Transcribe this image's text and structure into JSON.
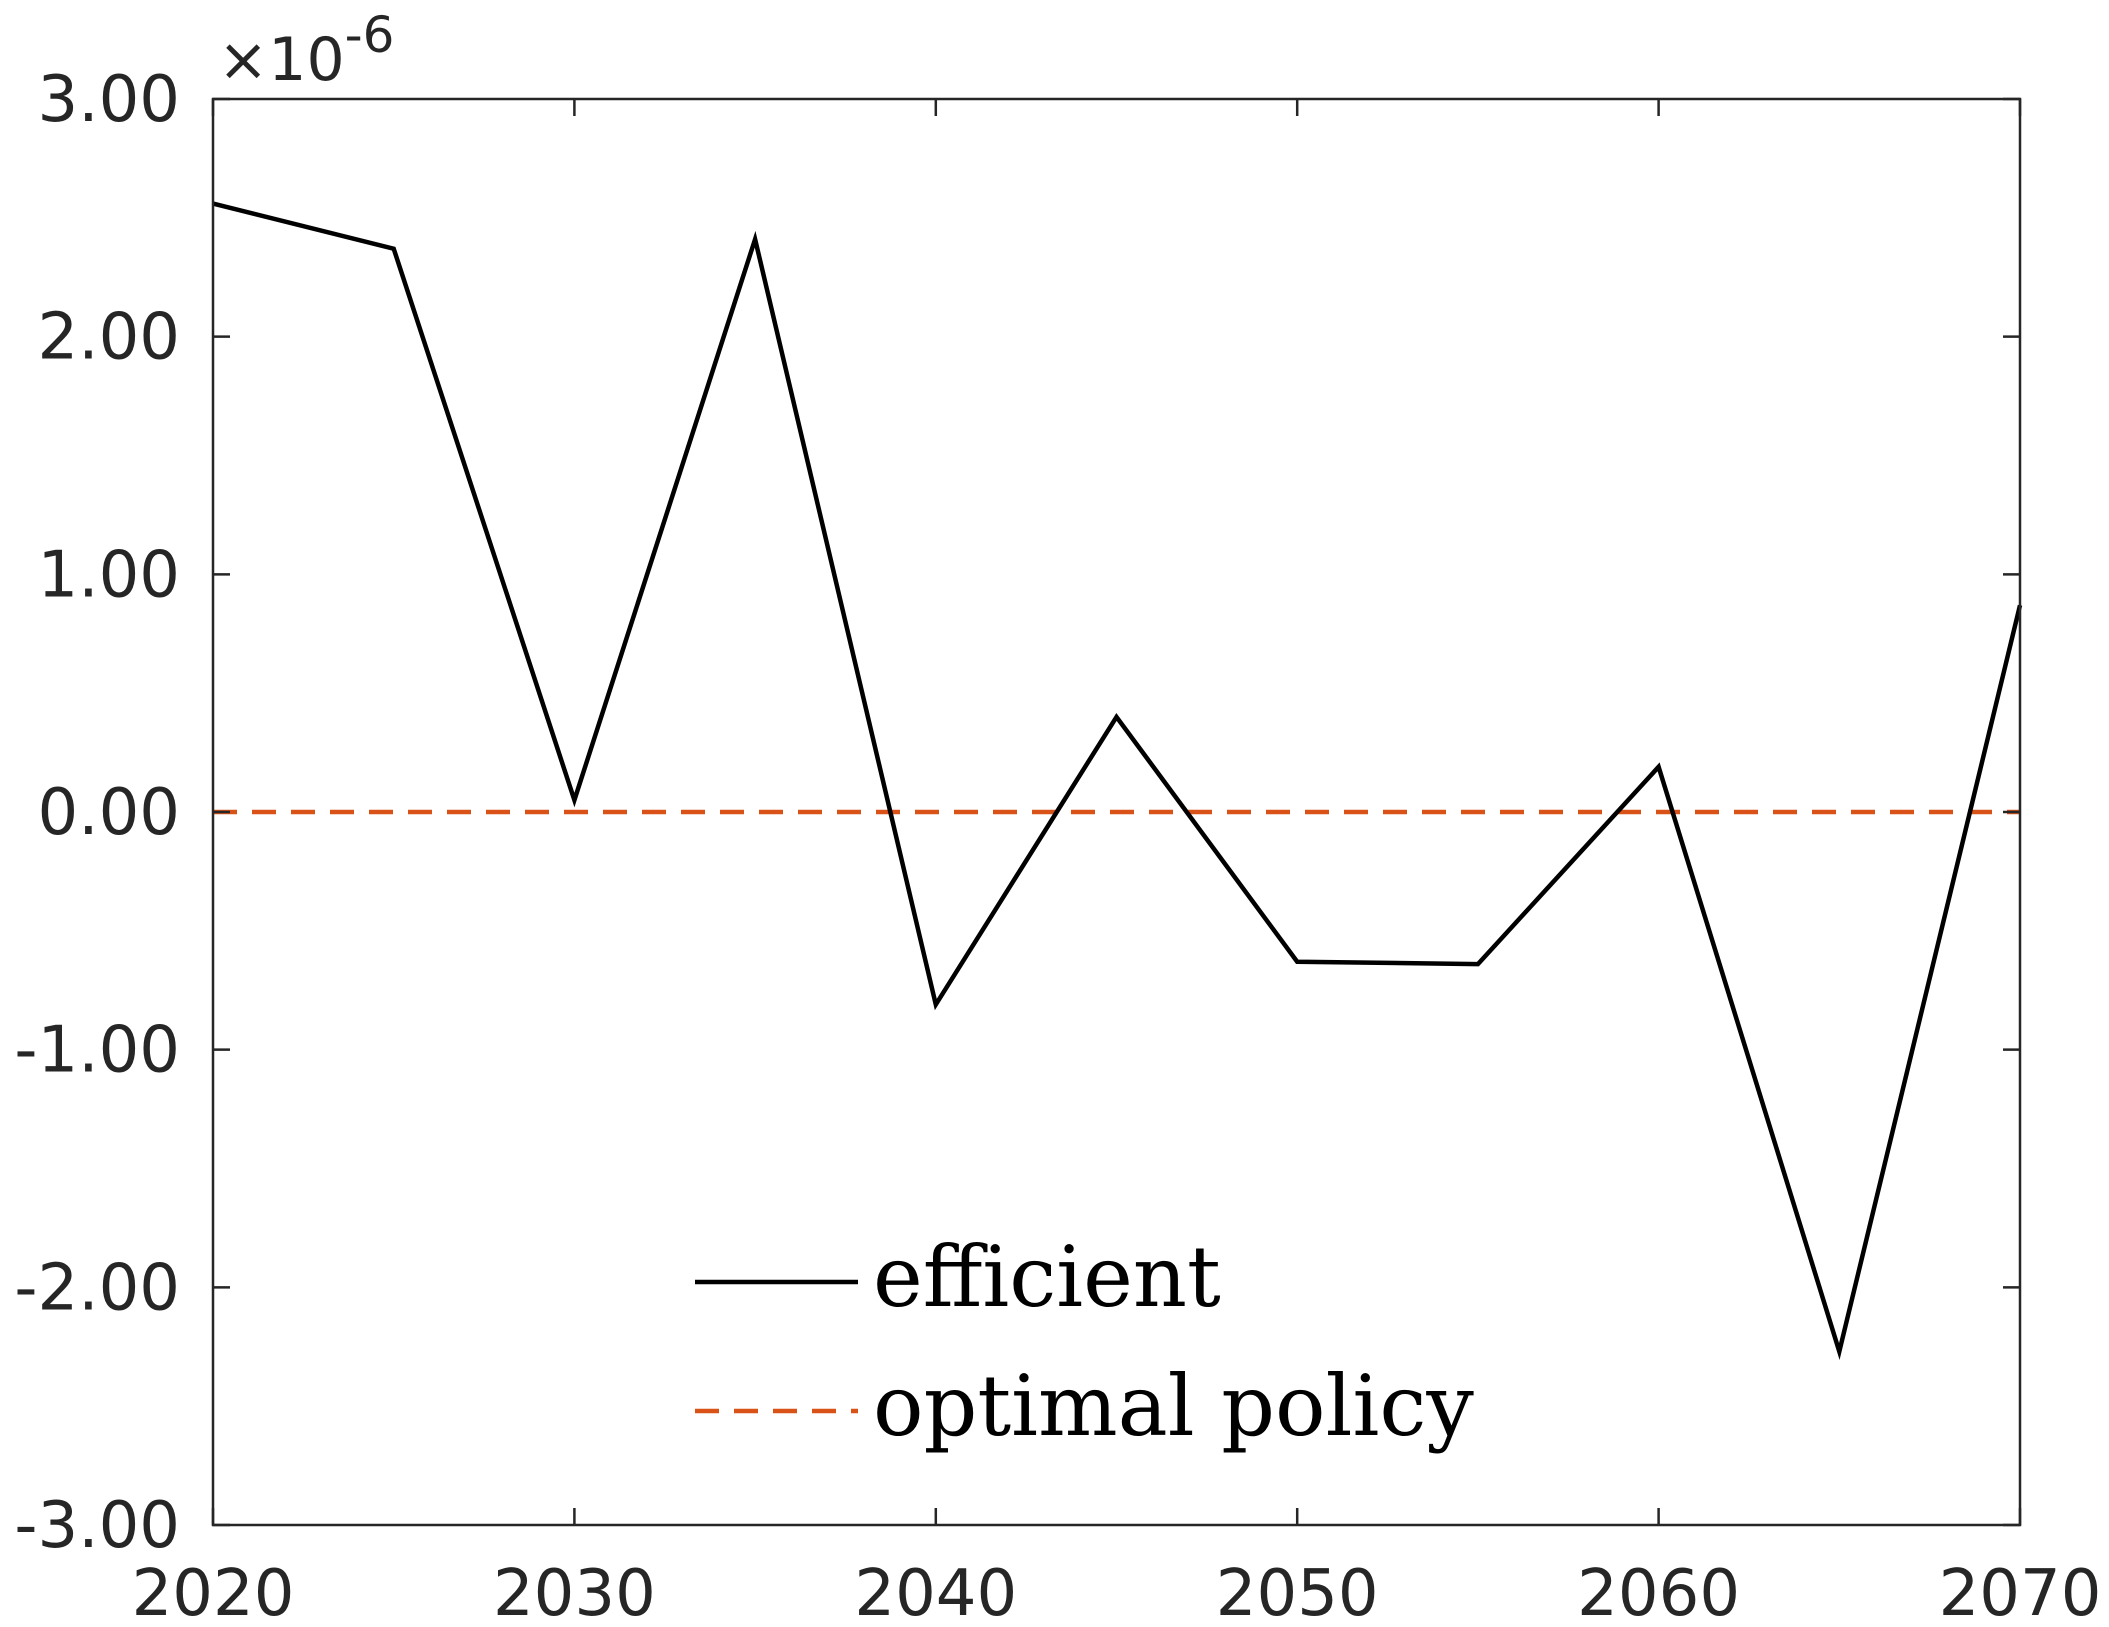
{
  "chart_data": {
    "type": "line",
    "title": "",
    "xlabel": "",
    "ylabel": "",
    "exponent_label": {
      "prefix": "×10",
      "power": "-6"
    },
    "xlim": [
      2020,
      2070
    ],
    "ylim": [
      -3.0,
      3.0
    ],
    "x_ticks": [
      2020,
      2030,
      2040,
      2050,
      2060,
      2070
    ],
    "x_tick_labels": [
      "2020",
      "2030",
      "2040",
      "2050",
      "2060",
      "2070"
    ],
    "y_ticks": [
      3.0,
      2.0,
      1.0,
      0.0,
      -1.0,
      -2.0,
      -3.0
    ],
    "y_tick_labels": [
      "3.00",
      "2.00",
      "1.00",
      "0.00",
      "-1.00",
      "-2.00",
      "-3.00"
    ],
    "grid": false,
    "legend_position": "bottom-center",
    "x": [
      2020,
      2025,
      2030,
      2035,
      2040,
      2045,
      2050,
      2055,
      2060,
      2065,
      2070
    ],
    "series": [
      {
        "name": "efficient",
        "color": "#000000",
        "line_style": "solid",
        "values": [
          2.56,
          2.37,
          0.05,
          2.41,
          -0.81,
          0.4,
          -0.63,
          -0.64,
          0.19,
          -2.27,
          0.87
        ]
      },
      {
        "name": "optimal policy",
        "color": "#D95319",
        "line_style": "dashed",
        "values": [
          0,
          0,
          0,
          0,
          0,
          0,
          0,
          0,
          0,
          0,
          0
        ]
      }
    ]
  }
}
